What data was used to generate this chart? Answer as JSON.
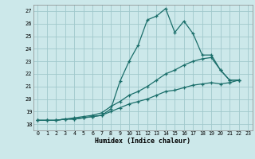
{
  "xlabel": "Humidex (Indice chaleur)",
  "xlim": [
    -0.5,
    23.5
  ],
  "ylim": [
    17.5,
    27.5
  ],
  "yticks": [
    18,
    19,
    20,
    21,
    22,
    23,
    24,
    25,
    26,
    27
  ],
  "xticks": [
    0,
    1,
    2,
    3,
    4,
    5,
    6,
    7,
    8,
    9,
    10,
    11,
    12,
    13,
    14,
    15,
    16,
    17,
    18,
    19,
    20,
    21,
    22,
    23
  ],
  "bg_color": "#cce8ea",
  "grid_color": "#a0c8cc",
  "line_color": "#1a6e6a",
  "line1_x": [
    0,
    1,
    2,
    3,
    4,
    5,
    6,
    7,
    8,
    9,
    10,
    11,
    12,
    13,
    14,
    15,
    16,
    17,
    18,
    19,
    20,
    21,
    22
  ],
  "line1_y": [
    18.3,
    18.3,
    18.3,
    18.4,
    18.4,
    18.5,
    18.6,
    18.7,
    19.2,
    21.4,
    23.0,
    24.3,
    26.3,
    26.6,
    27.2,
    25.3,
    26.2,
    25.2,
    23.5,
    23.5,
    22.3,
    21.5,
    21.5
  ],
  "line2_x": [
    0,
    1,
    2,
    3,
    4,
    5,
    6,
    7,
    8,
    9,
    10,
    11,
    12,
    13,
    14,
    15,
    16,
    17,
    18,
    19,
    20,
    21,
    22
  ],
  "line2_y": [
    18.3,
    18.3,
    18.3,
    18.4,
    18.5,
    18.6,
    18.7,
    18.9,
    19.4,
    19.8,
    20.3,
    20.6,
    21.0,
    21.5,
    22.0,
    22.3,
    22.7,
    23.0,
    23.2,
    23.3,
    22.3,
    21.5,
    21.5
  ],
  "line3_x": [
    0,
    1,
    2,
    3,
    4,
    5,
    6,
    7,
    8,
    9,
    10,
    11,
    12,
    13,
    14,
    15,
    16,
    17,
    18,
    19,
    20,
    21,
    22
  ],
  "line3_y": [
    18.3,
    18.3,
    18.3,
    18.4,
    18.4,
    18.5,
    18.6,
    18.7,
    19.0,
    19.3,
    19.6,
    19.8,
    20.0,
    20.3,
    20.6,
    20.7,
    20.9,
    21.1,
    21.2,
    21.3,
    21.2,
    21.3,
    21.5
  ]
}
